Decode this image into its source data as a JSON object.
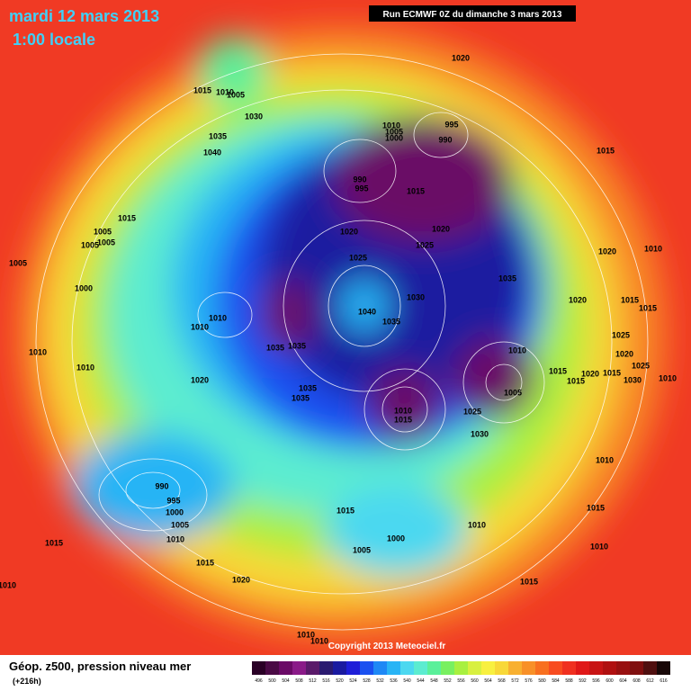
{
  "header": {
    "date": "mardi 12 mars 2013",
    "time": "1:00 locale",
    "run": "Run ECMWF 0Z du dimanche 3 mars 2013"
  },
  "footer": {
    "title": "Géop. z500, pression niveau mer",
    "lead": "(+216h)",
    "copyright": "Copyright 2013 Meteociel.fr"
  },
  "legend": {
    "levels": [
      496,
      500,
      504,
      508,
      512,
      516,
      520,
      524,
      528,
      532,
      536,
      540,
      544,
      548,
      552,
      556,
      560,
      564,
      568,
      572,
      576,
      580,
      584,
      588,
      592,
      596,
      600,
      604,
      608,
      612,
      616
    ],
    "colors": [
      "#2a0026",
      "#4a0a45",
      "#6a0a66",
      "#8a1a88",
      "#5a1a6a",
      "#2a1a70",
      "#1a1aa0",
      "#1e1ed8",
      "#1a50f0",
      "#1e88f5",
      "#28b4f5",
      "#4cd8f0",
      "#5cecd0",
      "#5af09a",
      "#78f060",
      "#a8f040",
      "#d8f040",
      "#f8f040",
      "#f8d838",
      "#f8b030",
      "#f89028",
      "#f87020",
      "#f84c20",
      "#f03020",
      "#e01818",
      "#c81414",
      "#b01010",
      "#981010",
      "#801010",
      "#501010",
      "#180808"
    ]
  },
  "isobar_labels": [
    "1015",
    "1010",
    "1005",
    "1030",
    "1035",
    "1040",
    "1020",
    "1010",
    "1005",
    "1000",
    "995",
    "990",
    "990",
    "995",
    "1015",
    "1020",
    "1025",
    "1020",
    "1025",
    "1015",
    "1005",
    "1005",
    "1005",
    "1005",
    "1000",
    "1040",
    "1035",
    "1030",
    "1035",
    "1010",
    "1010",
    "1035",
    "1035",
    "1035",
    "1035",
    "1020",
    "1010",
    "1010",
    "1010",
    "1005",
    "1010",
    "1015",
    "1025",
    "1030",
    "1015",
    "1020",
    "1010",
    "1020",
    "1015",
    "1015",
    "1025",
    "1020",
    "1015",
    "1015",
    "1020",
    "1015",
    "1025",
    "1030",
    "1010",
    "1010",
    "990",
    "995",
    "1000",
    "1005",
    "1010",
    "1015",
    "1015",
    "1020",
    "1010",
    "1015",
    "1000",
    "1005",
    "1010",
    "1015",
    "1010",
    "1015",
    "1010",
    "1010"
  ]
}
